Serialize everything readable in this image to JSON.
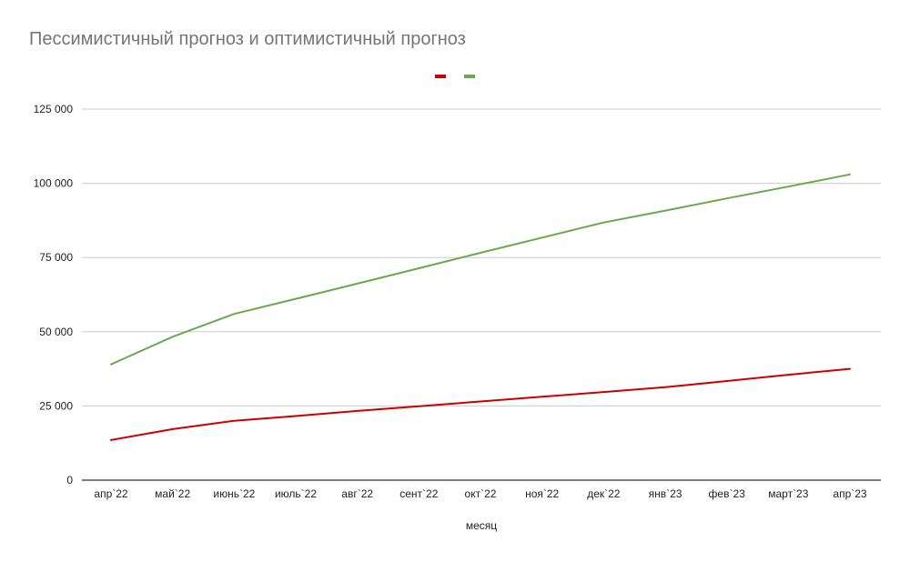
{
  "chart_data": {
    "type": "line",
    "title": "Пессимистичный прогноз и оптимистичный прогноз",
    "xlabel": "месяц",
    "ylabel": "",
    "categories": [
      "апр`22",
      "май`22",
      "июнь`22",
      "июль`22",
      "авг`22",
      "сент`22",
      "окт`22",
      "ноя`22",
      "дек`22",
      "янв`23",
      "фев`23",
      "март`23",
      "апр`23"
    ],
    "y_ticks": [
      "0",
      "25 000",
      "50 000",
      "75 000",
      "100 000",
      "125 000"
    ],
    "ylim": [
      0,
      125000
    ],
    "grid": true,
    "legend_position": "top-center",
    "series": [
      {
        "color": "#cc0000",
        "values": [
          13500,
          17200,
          20000,
          21600,
          23300,
          24900,
          26500,
          28100,
          29700,
          31300,
          33400,
          35500,
          37500
        ]
      },
      {
        "color": "#6aa84f",
        "values": [
          39000,
          48300,
          56000,
          61100,
          66200,
          71400,
          76600,
          81700,
          86800,
          90800,
          94900,
          98900,
          103000
        ]
      }
    ]
  }
}
